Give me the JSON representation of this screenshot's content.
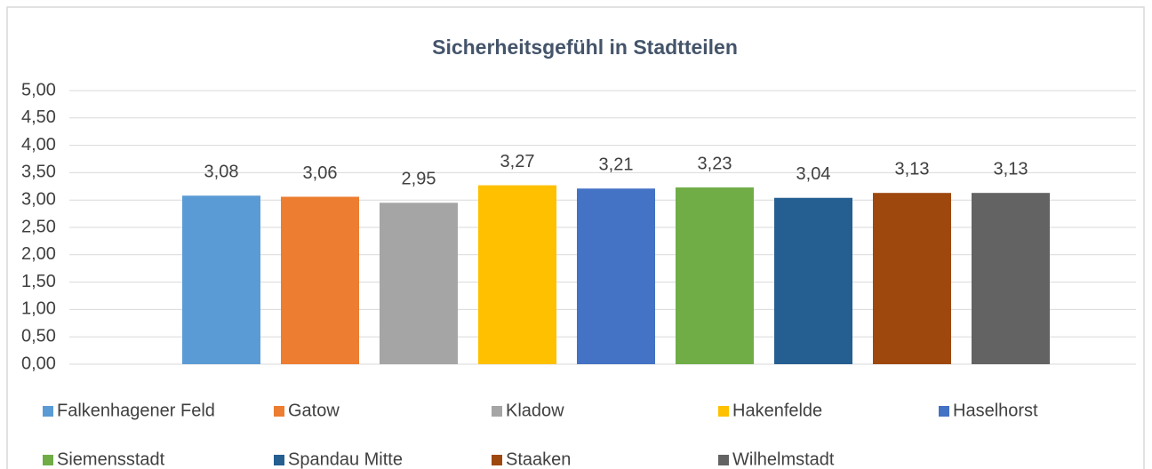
{
  "chart_data": {
    "type": "bar",
    "title": "Sicherheitsgefühl in Stadtteilen",
    "ylim": [
      0,
      5
    ],
    "yticks": [
      {
        "value": 0,
        "label": "0,00"
      },
      {
        "value": 0.5,
        "label": "0,50"
      },
      {
        "value": 1,
        "label": "1,00"
      },
      {
        "value": 1.5,
        "label": "1,50"
      },
      {
        "value": 2,
        "label": "2,00"
      },
      {
        "value": 2.5,
        "label": "2,50"
      },
      {
        "value": 3,
        "label": "3,00"
      },
      {
        "value": 3.5,
        "label": "3,50"
      },
      {
        "value": 4,
        "label": "4,00"
      },
      {
        "value": 4.5,
        "label": "4,50"
      },
      {
        "value": 5,
        "label": "5,00"
      }
    ],
    "grid": true,
    "legend": "bottom",
    "series": [
      {
        "name": "Falkenhagener Feld",
        "color": "#5B9BD5",
        "values": [
          3.08
        ],
        "value_labels": [
          "3,08"
        ]
      },
      {
        "name": "Gatow",
        "color": "#ED7D31",
        "values": [
          3.06
        ],
        "value_labels": [
          "3,06"
        ]
      },
      {
        "name": "Kladow",
        "color": "#A5A5A5",
        "values": [
          2.95
        ],
        "value_labels": [
          "2,95"
        ]
      },
      {
        "name": "Hakenfelde",
        "color": "#FFC000",
        "values": [
          3.27
        ],
        "value_labels": [
          "3,27"
        ]
      },
      {
        "name": "Haselhorst",
        "color": "#4472C4",
        "values": [
          3.21
        ],
        "value_labels": [
          "3,21"
        ]
      },
      {
        "name": "Siemensstadt",
        "color": "#70AD47",
        "values": [
          3.23
        ],
        "value_labels": [
          "3,23"
        ]
      },
      {
        "name": "Spandau Mitte",
        "color": "#255E91",
        "values": [
          3.04
        ],
        "value_labels": [
          "3,04"
        ]
      },
      {
        "name": "Staaken",
        "color": "#9E480E",
        "values": [
          3.13
        ],
        "value_labels": [
          "3,13"
        ]
      },
      {
        "name": "Wilhelmstadt",
        "color": "#636363",
        "values": [
          3.13
        ],
        "value_labels": [
          "3,13"
        ]
      }
    ]
  }
}
